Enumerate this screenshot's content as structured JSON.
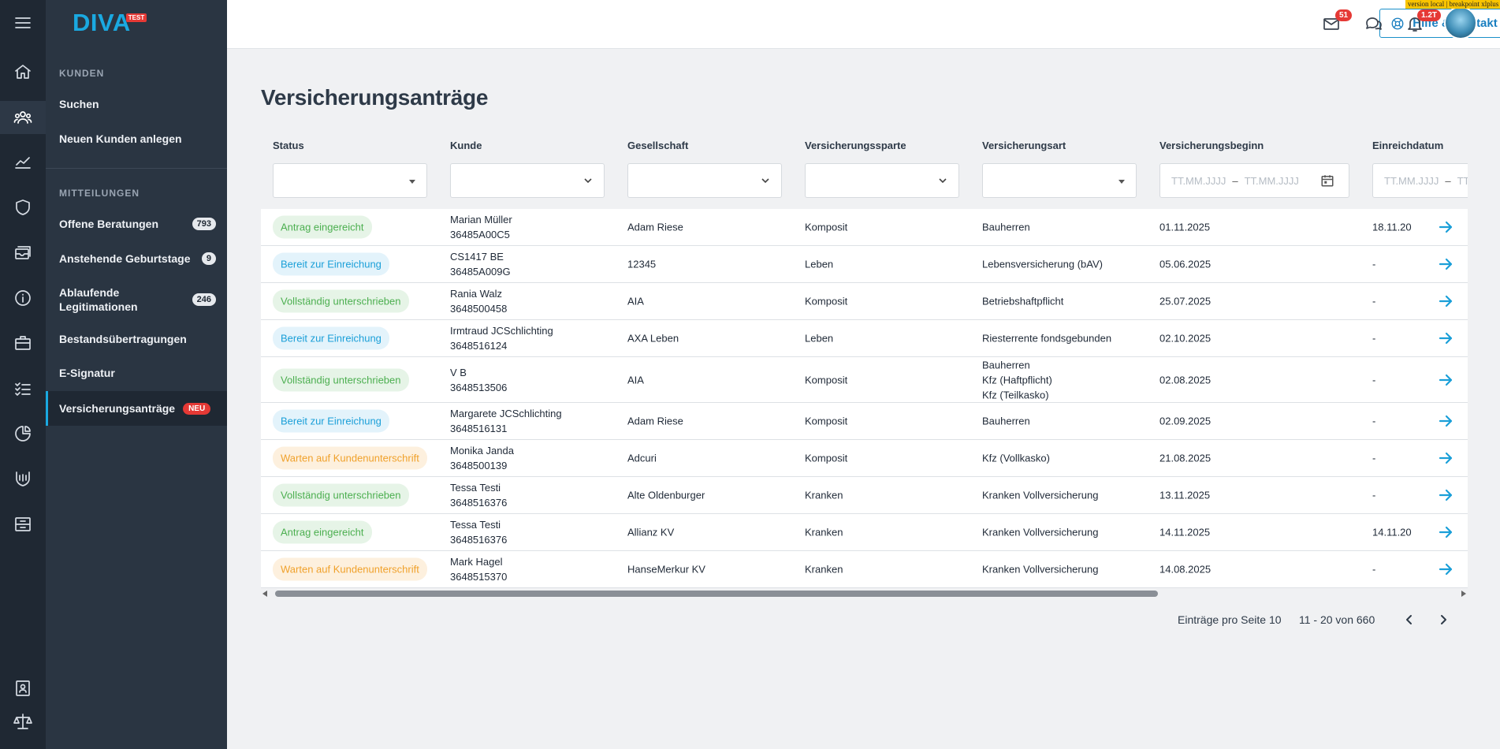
{
  "app": {
    "logo_text": "DIVA",
    "logo_tag": "TEST",
    "version_banner": "version local | breakpoint xlplus"
  },
  "sidebar": {
    "section_kunden": "KUNDEN",
    "kunden_items": [
      {
        "label": "Suchen"
      },
      {
        "label": "Neuen Kunden anlegen"
      }
    ],
    "section_mitteilungen": "MITTEILUNGEN",
    "mitteilungen_items": [
      {
        "label": "Offene Beratungen",
        "badge": "793"
      },
      {
        "label": "Anstehende Geburtstage",
        "badge": "9"
      },
      {
        "label": "Ablaufende Legitimationen",
        "badge": "246"
      },
      {
        "label": "Bestandsübertragungen"
      },
      {
        "label": "E-Signatur"
      },
      {
        "label": "Versicherungsanträge",
        "tag": "NEU"
      }
    ]
  },
  "header": {
    "help_label": "Hilfe & Kontakt",
    "mail_badge": "51",
    "bell_badge": "1.2T"
  },
  "main": {
    "title": "Versicherungsanträge",
    "columns": [
      "Status",
      "Kunde",
      "Gesellschaft",
      "Versicherungssparte",
      "Versicherungsart",
      "Versicherungsbeginn",
      "Einreichdatum"
    ],
    "date_placeholder": "TT.MM.JJJJ",
    "date_placeholder_cut": "TT",
    "rows": [
      {
        "status": "Antrag eingereicht",
        "status_type": "green",
        "kunde": "Marian Müller",
        "kunde_id": "36485A00C5",
        "gesellschaft": "Adam Riese",
        "sparte": "Komposit",
        "art": [
          "Bauherren"
        ],
        "beginn": "01.11.2025",
        "einreich": "18.11.20"
      },
      {
        "status": "Bereit zur Einreichung",
        "status_type": "blue",
        "kunde": "CS1417 BE",
        "kunde_id": "36485A009G",
        "gesellschaft": "12345",
        "sparte": "Leben",
        "art": [
          "Lebensversicherung (bAV)"
        ],
        "beginn": "05.06.2025",
        "einreich": "-"
      },
      {
        "status": "Vollständig unterschrieben",
        "status_type": "green",
        "kunde": "Rania Walz",
        "kunde_id": "3648500458",
        "gesellschaft": "AIA",
        "sparte": "Komposit",
        "art": [
          "Betriebshaftpflicht"
        ],
        "beginn": "25.07.2025",
        "einreich": "-"
      },
      {
        "status": "Bereit zur Einreichung",
        "status_type": "blue",
        "kunde": "Irmtraud JCSchlichting",
        "kunde_id": "3648516124",
        "gesellschaft": "AXA Leben",
        "sparte": "Leben",
        "art": [
          "Riesterrente fondsgebunden"
        ],
        "beginn": "02.10.2025",
        "einreich": "-"
      },
      {
        "status": "Vollständig unterschrieben",
        "status_type": "green",
        "kunde": "V B",
        "kunde_id": "3648513506",
        "gesellschaft": "AIA",
        "sparte": "Komposit",
        "art": [
          "Bauherren",
          "Kfz (Haftpflicht)",
          "Kfz (Teilkasko)"
        ],
        "beginn": "02.08.2025",
        "einreich": "-"
      },
      {
        "status": "Bereit zur Einreichung",
        "status_type": "blue",
        "kunde": "Margarete JCSchlichting",
        "kunde_id": "3648516131",
        "gesellschaft": "Adam Riese",
        "sparte": "Komposit",
        "art": [
          "Bauherren"
        ],
        "beginn": "02.09.2025",
        "einreich": "-"
      },
      {
        "status": "Warten auf Kundenunterschrift",
        "status_type": "orange",
        "kunde": "Monika Janda",
        "kunde_id": "3648500139",
        "gesellschaft": "Adcuri",
        "sparte": "Komposit",
        "art": [
          "Kfz (Vollkasko)"
        ],
        "beginn": "21.08.2025",
        "einreich": "-"
      },
      {
        "status": "Vollständig unterschrieben",
        "status_type": "green",
        "kunde": "Tessa Testi",
        "kunde_id": "3648516376",
        "gesellschaft": "Alte Oldenburger",
        "sparte": "Kranken",
        "art": [
          "Kranken Vollversicherung"
        ],
        "beginn": "13.11.2025",
        "einreich": "-"
      },
      {
        "status": "Antrag eingereicht",
        "status_type": "green",
        "kunde": "Tessa Testi",
        "kunde_id": "3648516376",
        "gesellschaft": "Allianz KV",
        "sparte": "Kranken",
        "art": [
          "Kranken Vollversicherung"
        ],
        "beginn": "14.11.2025",
        "einreich": "14.11.20"
      },
      {
        "status": "Warten auf Kundenunterschrift",
        "status_type": "orange",
        "kunde": "Mark Hagel",
        "kunde_id": "3648515370",
        "gesellschaft": "HanseMerkur KV",
        "sparte": "Kranken",
        "art": [
          "Kranken Vollversicherung"
        ],
        "beginn": "14.08.2025",
        "einreich": "-"
      }
    ],
    "pagination": {
      "per_page_label": "Einträge pro Seite 10",
      "range_label": "11 - 20 von 660"
    }
  },
  "colors": {
    "rail_bg": "#1f2833",
    "subnav_bg": "#2a3542",
    "accent": "#1aa9e1",
    "status_green": "#4caf50",
    "status_blue": "#1a9fd8",
    "status_orange": "#f0a12b",
    "badge_red": "#e53935"
  },
  "icons": {
    "rail": [
      "menu-icon",
      "home-icon",
      "customers-icon",
      "chart-icon",
      "shield-icon",
      "inbox-icon",
      "info-icon",
      "briefcase-icon",
      "checklist-icon",
      "pie-chart-icon",
      "shield-hand-icon",
      "archive-icon",
      "contact-book-icon",
      "scale-icon"
    ],
    "header": [
      "support-icon",
      "mail-icon",
      "chat-icon",
      "bell-icon"
    ]
  }
}
